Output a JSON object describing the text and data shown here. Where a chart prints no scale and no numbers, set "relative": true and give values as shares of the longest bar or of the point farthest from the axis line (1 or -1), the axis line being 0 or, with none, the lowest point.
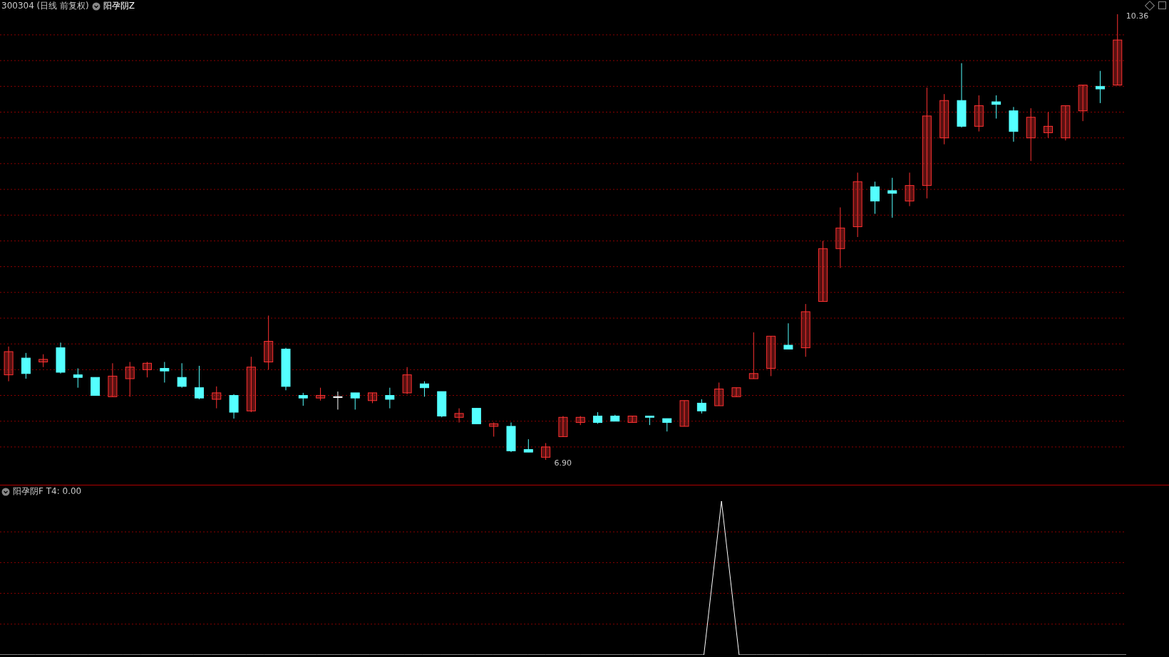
{
  "chart_data": [
    {
      "type": "candlestick",
      "title": "300304 (日线 前复权)",
      "subtitle": "阳孕阴Z",
      "tick_labels": false,
      "grid": "y",
      "categories": [
        null,
        null,
        null,
        null,
        null,
        null,
        null,
        null,
        null,
        null,
        null,
        null,
        null,
        null,
        null,
        null,
        null,
        null,
        null,
        null,
        null,
        null,
        null,
        null,
        null,
        null,
        null,
        null,
        null,
        null,
        null,
        null,
        null,
        null,
        null,
        null,
        null,
        null,
        null,
        null,
        null,
        null,
        null,
        null,
        null,
        null,
        null,
        null,
        null,
        null,
        null,
        null,
        null,
        null,
        null,
        null,
        null,
        null,
        null,
        null,
        null,
        null,
        null,
        null,
        null
      ],
      "ohlc": [
        [
          7.56,
          7.78,
          7.51,
          7.74
        ],
        [
          7.69,
          7.73,
          7.53,
          7.57
        ],
        [
          7.66,
          7.72,
          7.62,
          7.68
        ],
        [
          7.77,
          7.81,
          7.57,
          7.58
        ],
        [
          7.56,
          7.61,
          7.46,
          7.54
        ],
        [
          7.54,
          7.54,
          7.4,
          7.4
        ],
        [
          7.39,
          7.65,
          7.39,
          7.55
        ],
        [
          7.53,
          7.66,
          7.39,
          7.62
        ],
        [
          7.6,
          7.66,
          7.54,
          7.65
        ],
        [
          7.61,
          7.66,
          7.5,
          7.59
        ],
        [
          7.54,
          7.65,
          7.46,
          7.47
        ],
        [
          7.46,
          7.63,
          7.37,
          7.38
        ],
        [
          7.37,
          7.47,
          7.3,
          7.42
        ],
        [
          7.4,
          7.41,
          7.22,
          7.27
        ],
        [
          7.28,
          7.7,
          7.27,
          7.62
        ],
        [
          7.66,
          8.02,
          7.6,
          7.82
        ],
        [
          7.76,
          7.77,
          7.44,
          7.47
        ],
        [
          7.4,
          7.42,
          7.32,
          7.38
        ],
        [
          7.38,
          7.46,
          7.36,
          7.4
        ],
        [
          7.39,
          7.43,
          7.29,
          7.39
        ],
        [
          7.42,
          7.42,
          7.29,
          7.38
        ],
        [
          7.36,
          7.42,
          7.34,
          7.42
        ],
        [
          7.4,
          7.46,
          7.3,
          7.37
        ],
        [
          7.42,
          7.62,
          7.41,
          7.56
        ],
        [
          7.49,
          7.51,
          7.39,
          7.46
        ],
        [
          7.43,
          7.43,
          7.23,
          7.24
        ],
        [
          7.23,
          7.3,
          7.19,
          7.26
        ],
        [
          7.3,
          7.3,
          7.18,
          7.18
        ],
        [
          7.16,
          7.19,
          7.08,
          7.18
        ],
        [
          7.16,
          7.19,
          6.96,
          6.97
        ],
        [
          6.98,
          7.06,
          6.96,
          6.96
        ],
        [
          6.92,
          7.03,
          6.9,
          7.0
        ],
        [
          7.08,
          7.24,
          7.08,
          7.23
        ],
        [
          7.19,
          7.24,
          7.17,
          7.23
        ],
        [
          7.24,
          7.27,
          7.18,
          7.19
        ],
        [
          7.24,
          7.25,
          7.2,
          7.2
        ],
        [
          7.19,
          7.24,
          7.19,
          7.24
        ],
        [
          7.24,
          7.24,
          7.17,
          7.23
        ],
        [
          7.22,
          7.22,
          7.12,
          7.19
        ],
        [
          7.16,
          7.36,
          7.16,
          7.36
        ],
        [
          7.34,
          7.37,
          7.26,
          7.28
        ],
        [
          7.32,
          7.5,
          7.32,
          7.45
        ],
        [
          7.39,
          7.46,
          7.39,
          7.46
        ],
        [
          7.53,
          7.89,
          7.53,
          7.57
        ],
        [
          7.61,
          7.86,
          7.55,
          7.86
        ],
        [
          7.79,
          7.96,
          7.76,
          7.76
        ],
        [
          7.77,
          8.11,
          7.7,
          8.05
        ],
        [
          8.13,
          8.6,
          8.13,
          8.54
        ],
        [
          8.54,
          8.86,
          8.39,
          8.7
        ],
        [
          8.71,
          9.13,
          8.63,
          9.06
        ],
        [
          9.02,
          9.06,
          8.81,
          8.91
        ],
        [
          8.99,
          9.09,
          8.78,
          8.97
        ],
        [
          8.91,
          9.13,
          8.87,
          9.03
        ],
        [
          9.03,
          9.79,
          8.93,
          9.57
        ],
        [
          9.4,
          9.74,
          9.35,
          9.69
        ],
        [
          9.69,
          9.98,
          9.48,
          9.49
        ],
        [
          9.49,
          9.73,
          9.45,
          9.65
        ],
        [
          9.68,
          9.73,
          9.55,
          9.66
        ],
        [
          9.61,
          9.64,
          9.37,
          9.45
        ],
        [
          9.4,
          9.63,
          9.22,
          9.56
        ],
        [
          9.44,
          9.6,
          9.4,
          9.49
        ],
        [
          9.4,
          9.65,
          9.38,
          9.65
        ],
        [
          9.61,
          9.81,
          9.53,
          9.81
        ],
        [
          9.8,
          9.92,
          9.67,
          9.78
        ],
        [
          9.81,
          10.36,
          9.81,
          10.16
        ]
      ],
      "colors": [
        "#ff3232",
        "#54ffff",
        "#ff3232",
        "#54ffff",
        "#54ffff",
        "#54ffff",
        "#ff3232",
        "#ff3232",
        "#ff3232",
        "#54ffff",
        "#54ffff",
        "#54ffff",
        "#ff3232",
        "#54ffff",
        "#ff3232",
        "#ff3232",
        "#54ffff",
        "#54ffff",
        "#ff3232",
        "#ffffff",
        "#54ffff",
        "#ff3232",
        "#54ffff",
        "#ff3232",
        "#54ffff",
        "#54ffff",
        "#ff3232",
        "#54ffff",
        "#ff3232",
        "#54ffff",
        "#54ffff",
        "#ff3232",
        "#ff3232",
        "#ff3232",
        "#54ffff",
        "#54ffff",
        "#ff3232",
        "#54ffff",
        "#54ffff",
        "#ff3232",
        "#54ffff",
        "#ff3232",
        "#ff3232",
        "#ff3232",
        "#ff3232",
        "#54ffff",
        "#ff3232",
        "#ff3232",
        "#ff3232",
        "#ff3232",
        "#54ffff",
        "#54ffff",
        "#ff3232",
        "#ff3232",
        "#ff3232",
        "#54ffff",
        "#ff3232",
        "#54ffff",
        "#54ffff",
        "#ff3232",
        "#ff3232",
        "#ff3232",
        "#ff3232",
        "#54ffff",
        "#ff3232"
      ],
      "yticks": [
        {
          "value": 7.0,
          "label": null
        },
        {
          "value": 7.2,
          "label": null
        },
        {
          "value": 7.4,
          "label": null
        },
        {
          "value": 7.6,
          "label": null
        },
        {
          "value": 7.8,
          "label": null
        },
        {
          "value": 8.0,
          "label": null
        },
        {
          "value": 8.2,
          "label": null
        },
        {
          "value": 8.4,
          "label": null
        },
        {
          "value": 8.6,
          "label": null
        },
        {
          "value": 8.8,
          "label": null
        },
        {
          "value": 9.0,
          "label": null
        },
        {
          "value": 9.2,
          "label": null
        },
        {
          "value": 9.4,
          "label": null
        },
        {
          "value": 9.6,
          "label": null
        },
        {
          "value": 9.8,
          "label": null
        },
        {
          "value": 10.0,
          "label": null
        },
        {
          "value": 10.2,
          "label": null
        }
      ],
      "annotations": [
        "10.36",
        "6.90"
      ]
    },
    {
      "type": "line",
      "title": "阳孕阴F T4: 0.00",
      "relative": true,
      "tick_labels": false,
      "ref_lines": [
        {
          "axis": "y",
          "value": 0.2,
          "color": "#8b0000",
          "line_style": "dashed"
        },
        {
          "axis": "y",
          "value": 0.4,
          "color": "#8b0000",
          "line_style": "dashed"
        },
        {
          "axis": "y",
          "value": 0.6,
          "color": "#8b0000",
          "line_style": "dashed"
        },
        {
          "axis": "y",
          "value": 0.8,
          "color": "#8b0000",
          "line_style": "dashed"
        }
      ],
      "categories": [
        null,
        null,
        null,
        null,
        null,
        null,
        null,
        null,
        null,
        null,
        null,
        null,
        null,
        null,
        null,
        null,
        null,
        null,
        null,
        null,
        null,
        null,
        null,
        null,
        null,
        null,
        null,
        null,
        null,
        null,
        null,
        null,
        null,
        null,
        null,
        null,
        null,
        null,
        null,
        null,
        null,
        null,
        null,
        null,
        null,
        null,
        null,
        null,
        null,
        null,
        null,
        null,
        null,
        null,
        null,
        null,
        null,
        null,
        null,
        null,
        null,
        null,
        null,
        null,
        null
      ],
      "series": [
        {
          "color": "#ffffff",
          "values": [
            0,
            0,
            0,
            0,
            0,
            0,
            0,
            0,
            0,
            0,
            0,
            0,
            0,
            0,
            0,
            0,
            0,
            0,
            0,
            0,
            0,
            0,
            0,
            0,
            0,
            0,
            0,
            0,
            0,
            0,
            0,
            0,
            0,
            0,
            0,
            0,
            0,
            0,
            0,
            0,
            0,
            1,
            0,
            0,
            0,
            0,
            0,
            0,
            0,
            0,
            0,
            0,
            0,
            0,
            0,
            0,
            0,
            0,
            0,
            0,
            0,
            0,
            0,
            0,
            0
          ]
        }
      ]
    }
  ]
}
